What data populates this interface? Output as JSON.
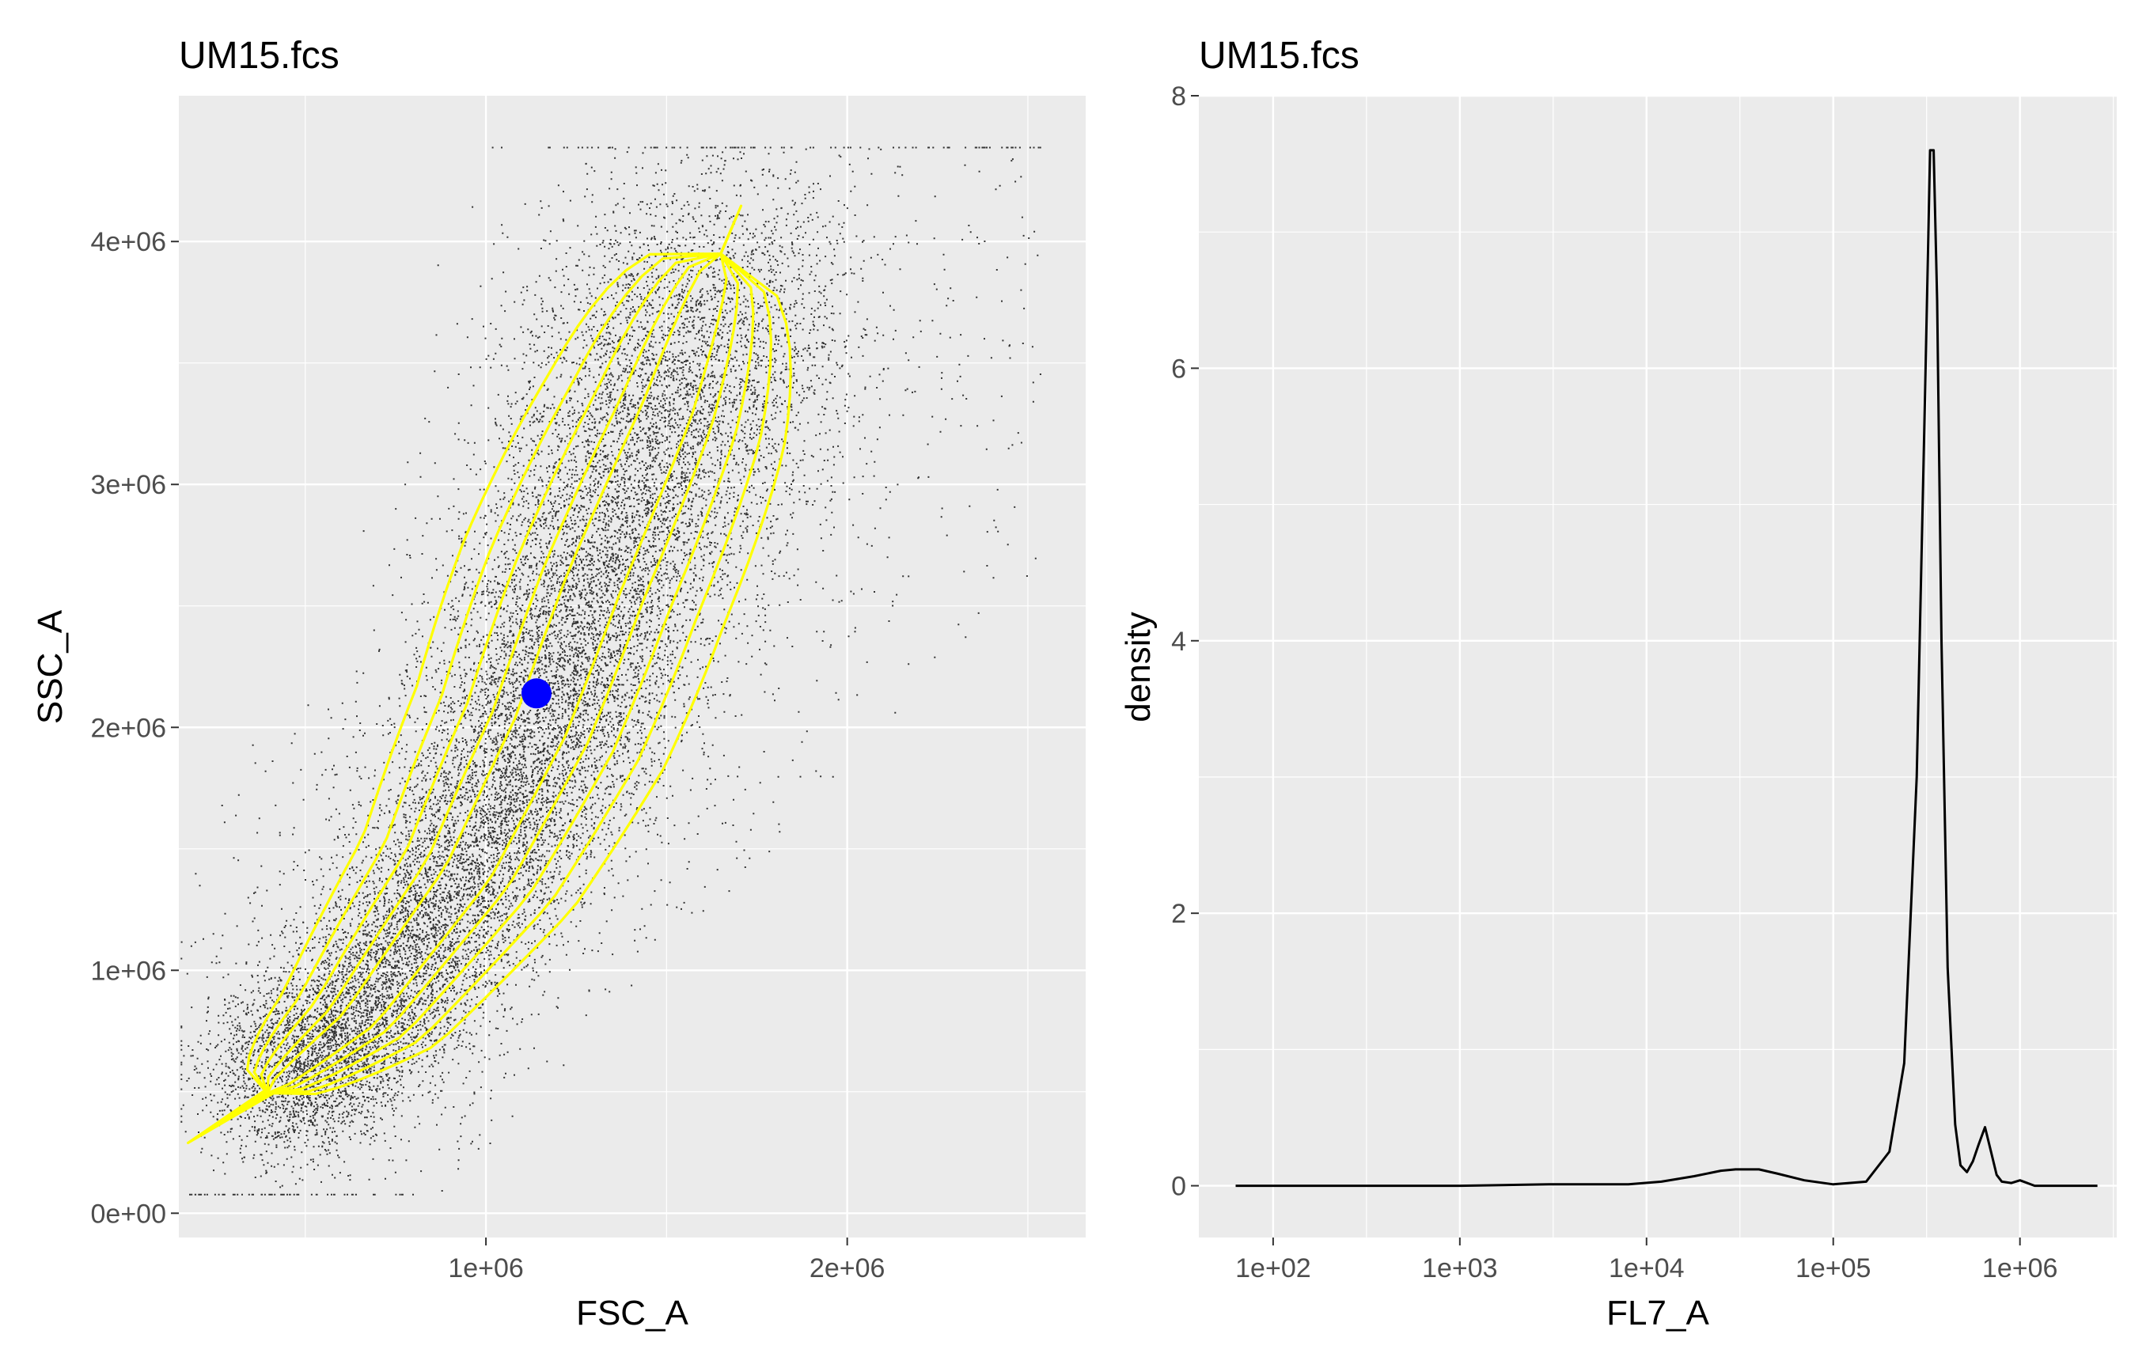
{
  "chart_data": [
    {
      "type": "scatter",
      "title": "UM15.fcs",
      "xlabel": "FSC_A",
      "ylabel": "SSC_A",
      "xlim": [
        150000,
        2660000
      ],
      "ylim": [
        -100000,
        4600000
      ],
      "x_ticks": [
        {
          "value": 1000000,
          "label": "1e+06"
        },
        {
          "value": 2000000,
          "label": "2e+06"
        }
      ],
      "y_ticks": [
        {
          "value": 0,
          "label": "0e+00"
        },
        {
          "value": 1000000,
          "label": "1e+06"
        },
        {
          "value": 2000000,
          "label": "2e+06"
        },
        {
          "value": 3000000,
          "label": "3e+06"
        },
        {
          "value": 4000000,
          "label": "4e+06"
        }
      ],
      "grid": true,
      "point_color": "#333333",
      "density": {
        "color": "#ffff00",
        "core": [
          {
            "x": 400000,
            "y": 500000
          },
          {
            "x": 650000,
            "y": 800000
          },
          {
            "x": 950000,
            "y": 1400000
          },
          {
            "x": 1150000,
            "y": 2000000
          },
          {
            "x": 1300000,
            "y": 2600000
          },
          {
            "x": 1500000,
            "y": 3300000
          },
          {
            "x": 1650000,
            "y": 3950000
          }
        ]
      },
      "highlight_point": {
        "x": 1140000,
        "y": 2140000,
        "color": "#0000ff"
      }
    },
    {
      "type": "line",
      "title": "UM15.fcs",
      "xlabel": "FL7_A",
      "ylabel": "density",
      "x_scale": "log10",
      "xlim": [
        40,
        3300000
      ],
      "ylim": [
        -0.38,
        8
      ],
      "x_ticks": [
        {
          "value": 100,
          "label": "1e+02"
        },
        {
          "value": 1000,
          "label": "1e+03"
        },
        {
          "value": 10000,
          "label": "1e+04"
        },
        {
          "value": 100000,
          "label": "1e+05"
        },
        {
          "value": 1000000,
          "label": "1e+06"
        }
      ],
      "y_ticks": [
        {
          "value": 0,
          "label": "0"
        },
        {
          "value": 2,
          "label": "2"
        },
        {
          "value": 4,
          "label": "4"
        },
        {
          "value": 6,
          "label": "6"
        },
        {
          "value": 8,
          "label": "8"
        }
      ],
      "grid": true,
      "line_color": "#000000",
      "series": [
        {
          "x": [
            63,
            1000,
            3000,
            8000,
            12000,
            18000,
            25000,
            30000,
            40000,
            50000,
            70000,
            100000,
            150000,
            200000,
            240000,
            280000,
            310000,
            330000,
            345000,
            360000,
            380000,
            410000,
            450000,
            480000,
            520000,
            560000,
            600000,
            650000,
            700000,
            750000,
            800000,
            900000,
            1000000,
            1200000,
            2600000
          ],
          "y": [
            0,
            0,
            0.01,
            0.01,
            0.03,
            0.07,
            0.11,
            0.12,
            0.12,
            0.09,
            0.04,
            0.01,
            0.03,
            0.25,
            0.9,
            3.0,
            5.8,
            7.6,
            7.6,
            6.5,
            4.0,
            1.6,
            0.45,
            0.15,
            0.1,
            0.18,
            0.3,
            0.43,
            0.25,
            0.08,
            0.03,
            0.02,
            0.04,
            0,
            0
          ]
        }
      ]
    }
  ]
}
